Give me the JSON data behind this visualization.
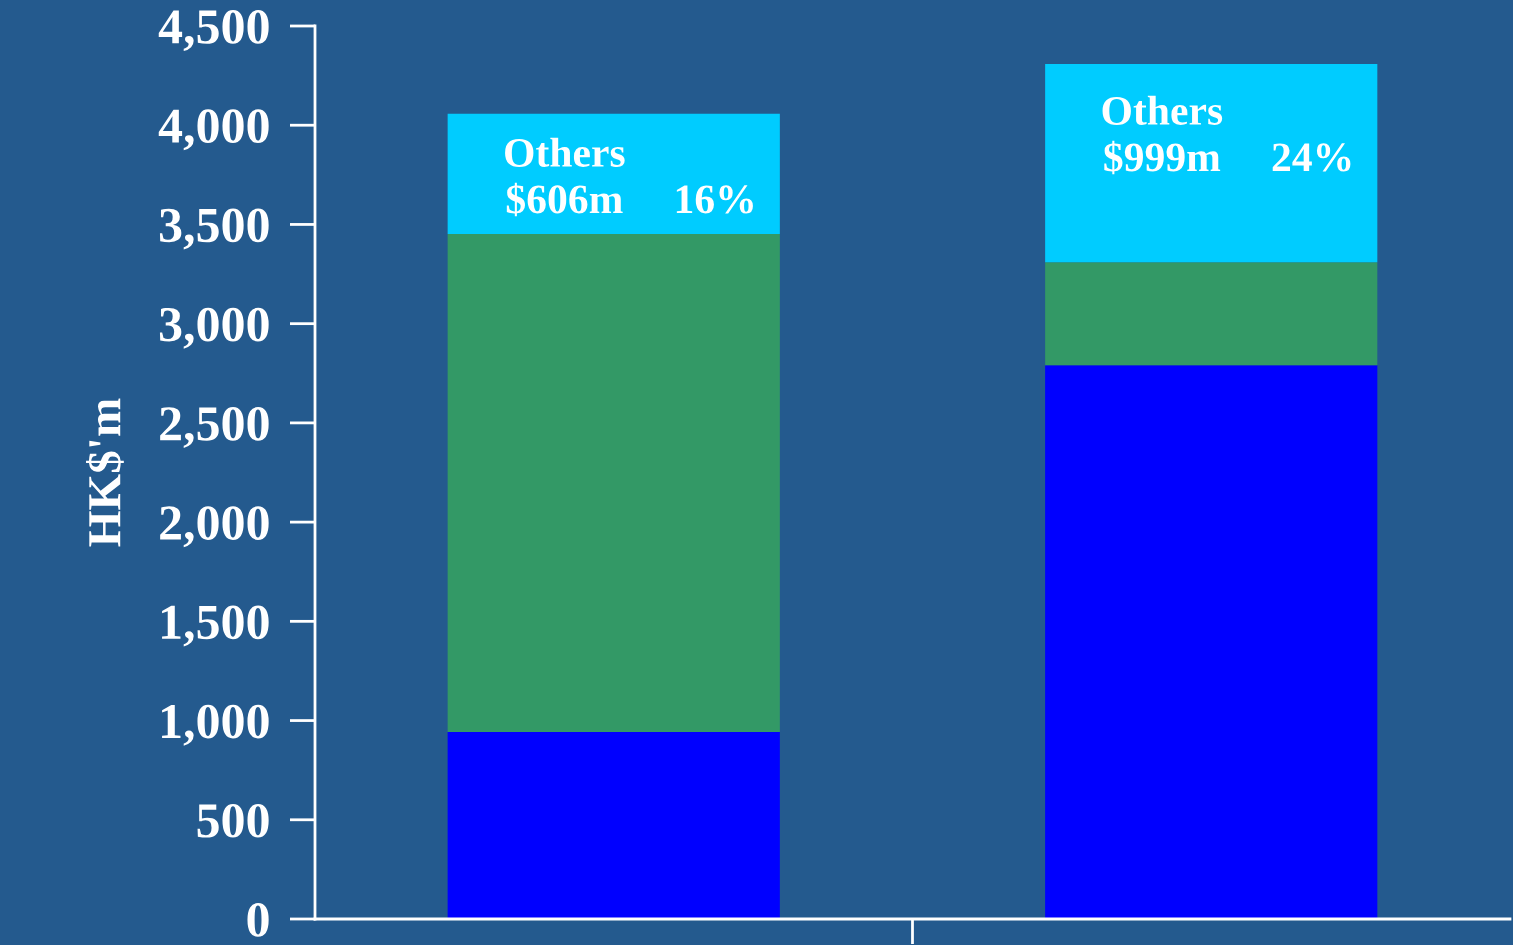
{
  "chart_data": {
    "type": "bar",
    "stacked": true,
    "ylabel": "HK$'m",
    "categories": [
      null,
      null
    ],
    "series": [
      {
        "color": "#0000ff",
        "values": [
          942,
          2790
        ]
      },
      {
        "color": "#339966",
        "values": [
          2510,
          520
        ]
      },
      {
        "name": "Others",
        "color": "#00ccff",
        "values": [
          606,
          999
        ],
        "value_labels": [
          "$606m",
          "$999m"
        ]
      }
    ],
    "ylim": [
      0,
      4500
    ],
    "yticks": [
      {
        "value": 0,
        "label": "0"
      },
      {
        "value": 500,
        "label": "500"
      },
      {
        "value": 1000,
        "label": "1,000"
      },
      {
        "value": 1500,
        "label": "1,500"
      },
      {
        "value": 2000,
        "label": "2,000"
      },
      {
        "value": 2500,
        "label": "2,500"
      },
      {
        "value": 3000,
        "label": "3,000"
      },
      {
        "value": 3500,
        "label": "3,500"
      },
      {
        "value": 4000,
        "label": "4,000"
      },
      {
        "value": 4500,
        "label": "4,500"
      }
    ],
    "annotations": [
      "16%",
      "24%"
    ],
    "tick_labels": "y",
    "grid": false,
    "legend": false
  }
}
